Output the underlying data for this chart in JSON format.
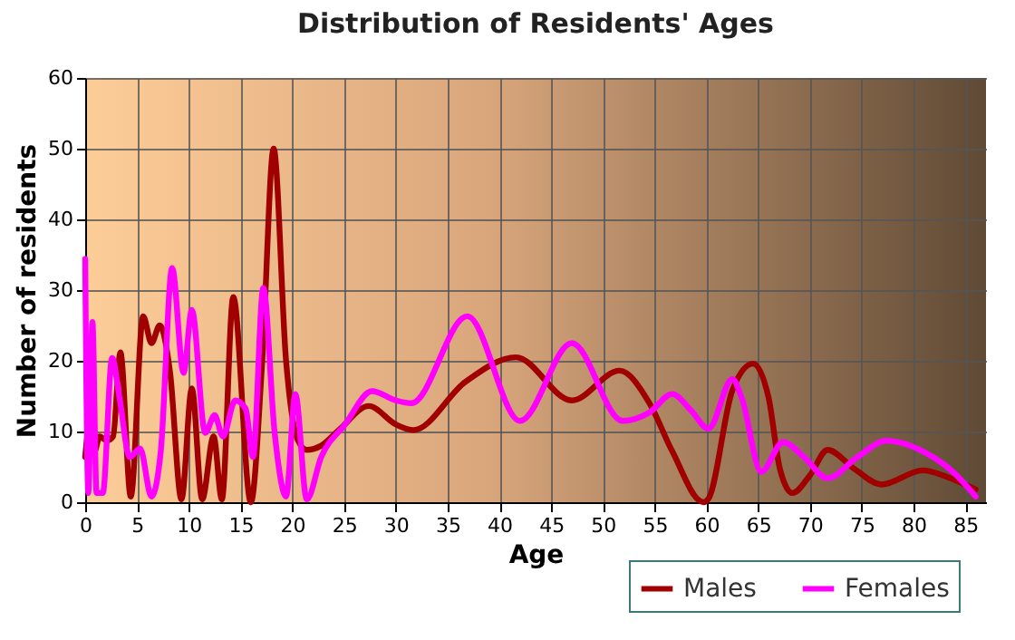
{
  "chart_data": {
    "type": "line",
    "title": "Distribution of Residents' Ages",
    "xlabel": "Age",
    "ylabel": "Number of residents",
    "xlim": [
      0,
      87
    ],
    "xticks": [
      0,
      5,
      10,
      15,
      20,
      25,
      30,
      35,
      40,
      45,
      50,
      55,
      60,
      65,
      70,
      75,
      80,
      85
    ],
    "ylim": [
      0,
      60
    ],
    "yticks": [
      0,
      10,
      20,
      30,
      40,
      50,
      60
    ],
    "grid": true,
    "legend": "bottom right",
    "marker": "none",
    "line_style": "solid",
    "series": [
      {
        "name": "Males",
        "color": "#a00000",
        "x": [
          0,
          0.3,
          0.9,
          1.4,
          2.1,
          2.7,
          3.4,
          4.4,
          5.6,
          6.4,
          7.2,
          8.2,
          9.3,
          10.3,
          11.3,
          12.4,
          13.2,
          14.3,
          16,
          17.1,
          18.2,
          19.4,
          20.5,
          21.4,
          22.8,
          24.5,
          27.4,
          30,
          31.7,
          36.7,
          41.6,
          47,
          51.6,
          54.5,
          56.7,
          59.7,
          60.2,
          62.5,
          64.5,
          66,
          67.1,
          68.3,
          70,
          71.7,
          74.3,
          76.9,
          80.9,
          83.2,
          86
        ],
        "values": [
          6.4,
          9.8,
          7.2,
          9.3,
          8.7,
          9.3,
          21.2,
          0.8,
          26.3,
          22.5,
          25,
          18.3,
          0.4,
          16.1,
          0.4,
          9.3,
          0.4,
          29,
          0,
          20,
          50,
          20,
          8.9,
          7.4,
          8,
          10.2,
          13.6,
          11,
          10.2,
          17,
          20.5,
          14.4,
          18.6,
          14,
          7.2,
          0,
          0.5,
          15.8,
          19.6,
          14.8,
          4.7,
          1.3,
          3.8,
          7.4,
          4.7,
          2.5,
          4.5,
          3.6,
          1.8
        ]
      },
      {
        "name": "Females",
        "color": "#ff00ff",
        "x": [
          0,
          0.3,
          0.7,
          1.1,
          1.7,
          2.6,
          3.3,
          4.3,
          5.3,
          6.4,
          7.3,
          8.4,
          9.5,
          10.3,
          11.6,
          12.5,
          13.3,
          14.5,
          15.5,
          16.2,
          17.2,
          18.3,
          19.4,
          20.3,
          21.4,
          22.8,
          25.1,
          27.7,
          30,
          31.5,
          36.9,
          42,
          47,
          51.9,
          54.5,
          56.7,
          58.5,
          60.2,
          62.5,
          63.4,
          65.3,
          67.4,
          69.4,
          71.7,
          74.6,
          77.4,
          80.9,
          83.8,
          86
        ],
        "values": [
          34.4,
          1.3,
          25.5,
          1.3,
          1.3,
          20.4,
          14.9,
          6.4,
          7.6,
          0.8,
          7.2,
          33.1,
          18.3,
          27.2,
          9.8,
          12.3,
          9.3,
          14.4,
          13.2,
          6.4,
          30.3,
          9.8,
          0.8,
          15.3,
          0.4,
          6.4,
          11,
          15.7,
          14.4,
          14,
          26.3,
          11.5,
          22.5,
          11.5,
          12.7,
          15.3,
          13,
          10.4,
          17.4,
          14.8,
          4.3,
          8.5,
          6.4,
          3.4,
          6.4,
          8.7,
          7.2,
          4.3,
          0.8
        ]
      }
    ]
  }
}
